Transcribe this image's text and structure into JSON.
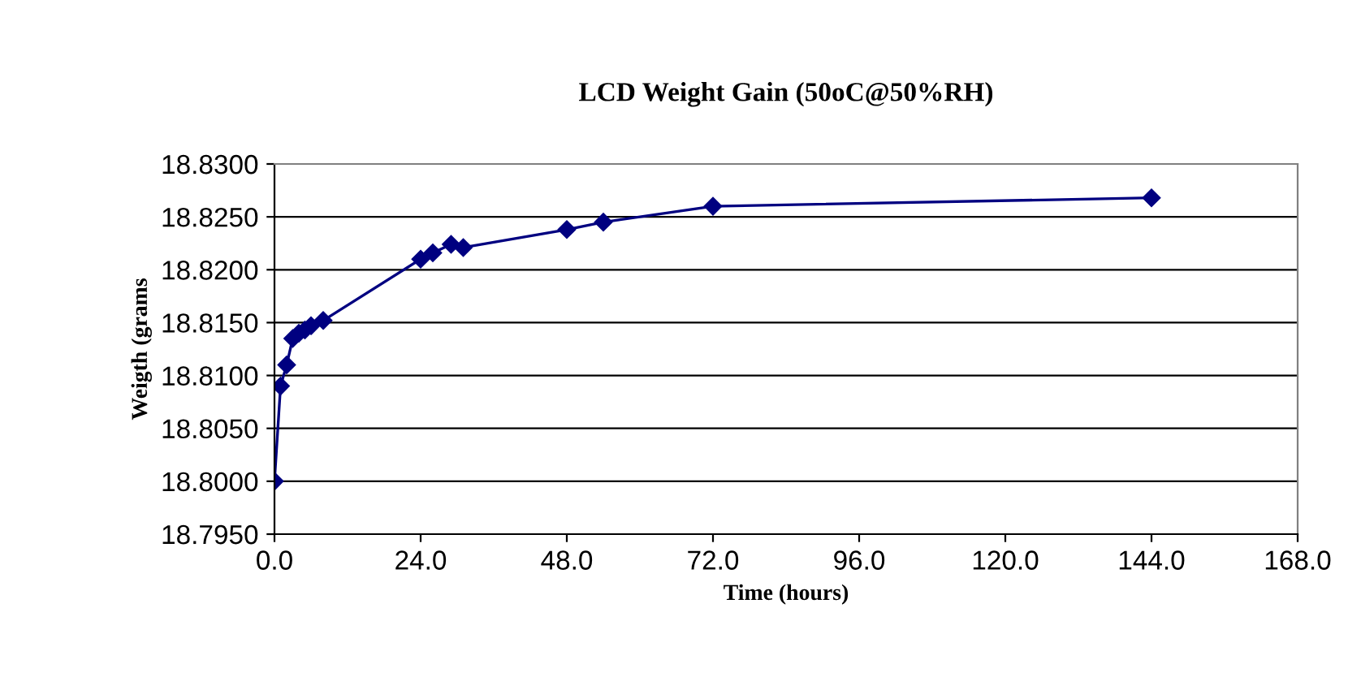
{
  "chart_data": {
    "type": "line",
    "title": "LCD Weight Gain (50oC@50%RH)",
    "xlabel": "Time (hours)",
    "ylabel": "Weigth (grams",
    "x": [
      0,
      1,
      2,
      3,
      4,
      5,
      6,
      8,
      24,
      26,
      29,
      31,
      48,
      54,
      72,
      144
    ],
    "series": [
      {
        "color": "#000080",
        "values": [
          18.8,
          18.809,
          18.811,
          18.8135,
          18.814,
          18.8143,
          18.8147,
          18.8152,
          18.821,
          18.8216,
          18.8224,
          18.8221,
          18.8238,
          18.8245,
          18.826,
          18.8268
        ]
      }
    ],
    "xlim": [
      0,
      168
    ],
    "xticks": [
      {
        "value": 0,
        "label": "0.0"
      },
      {
        "value": 24,
        "label": "24.0"
      },
      {
        "value": 48,
        "label": "48.0"
      },
      {
        "value": 72,
        "label": "72.0"
      },
      {
        "value": 96,
        "label": "96.0"
      },
      {
        "value": 120,
        "label": "120.0"
      },
      {
        "value": 144,
        "label": "144.0"
      },
      {
        "value": 168,
        "label": "168.0"
      }
    ],
    "ylim": [
      18.795,
      18.83
    ],
    "yticks": [
      {
        "value": 18.795,
        "label": "18.7950"
      },
      {
        "value": 18.8,
        "label": "18.8000"
      },
      {
        "value": 18.805,
        "label": "18.8050"
      },
      {
        "value": 18.81,
        "label": "18.8100"
      },
      {
        "value": 18.815,
        "label": "18.8150"
      },
      {
        "value": 18.82,
        "label": "18.8200"
      },
      {
        "value": 18.825,
        "label": "18.8250"
      },
      {
        "value": 18.83,
        "label": "18.8300"
      }
    ],
    "grid": "y",
    "marker": "diamond",
    "line_style": "solid",
    "legend": false
  }
}
